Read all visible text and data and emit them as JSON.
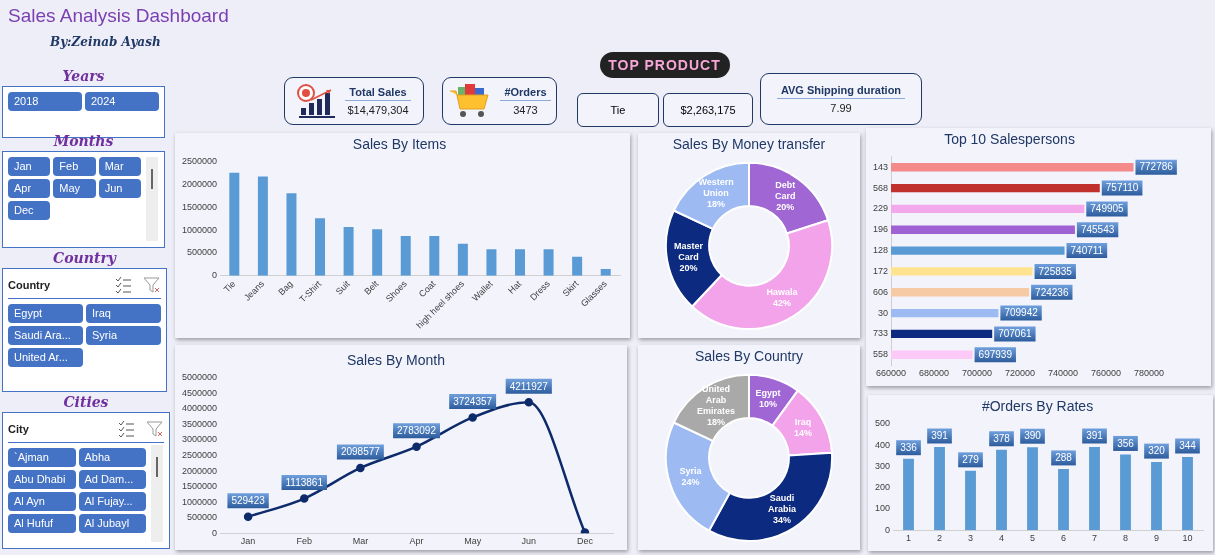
{
  "chart_data": [
    {
      "type": "other",
      "title": "Sales Analysis Dashboard",
      "subtitle": "By:Zeinab Ayash"
    },
    {
      "type": "other",
      "title": "Years",
      "annotations": [
        "2018",
        "2024"
      ]
    },
    {
      "type": "other",
      "title": "Months",
      "annotations": [
        "Jan",
        "Feb",
        "Mar",
        "Apr",
        "May",
        "Jun",
        "Dec"
      ]
    },
    {
      "type": "other",
      "title": "Country",
      "subtitle": "Country",
      "annotations": [
        "Egypt",
        "Iraq",
        "Saudi Ara...",
        "Syria",
        "United Ar..."
      ]
    },
    {
      "type": "other",
      "title": "Cities",
      "subtitle": "City",
      "annotations": [
        "`Ajman",
        "Abha",
        "Abu Dhabi",
        "Ad Dam...",
        "Al Ayn",
        "Al Fujay...",
        "Al Hufuf",
        "Al Jubayl"
      ]
    },
    {
      "type": "other",
      "title": "Total Sales",
      "annotations": [
        "$14,479,304"
      ]
    },
    {
      "type": "other",
      "title": "#Orders",
      "annotations": [
        "3473"
      ]
    },
    {
      "type": "other",
      "title": "TOP PRODUCT",
      "annotations": [
        "Tie",
        "$2,263,175"
      ]
    },
    {
      "type": "other",
      "title": "AVG Shipping duration",
      "annotations": [
        "7.99"
      ]
    },
    {
      "type": "bar",
      "title": "Sales By Items",
      "categories": [
        "Tie",
        "Jeans",
        "Bag",
        "T-Shirt",
        "Suit",
        "Belt",
        "Shoes",
        "Coat",
        "high heel shoes",
        "Wallet",
        "Hat",
        "Dress",
        "Skirt",
        "Glasses"
      ],
      "values": [
        2260000,
        2180000,
        1810000,
        1260000,
        1070000,
        1020000,
        870000,
        870000,
        700000,
        580000,
        580000,
        580000,
        420000,
        150000
      ],
      "color": "#5b9bd5",
      "ylim": [
        0,
        2500000
      ],
      "yticks": [
        0,
        500000,
        1000000,
        1500000,
        2000000,
        2500000
      ]
    },
    {
      "type": "donut",
      "title": "Sales By Money transfer",
      "categories": [
        "Debt Card",
        "Hawala",
        "Master Card",
        "Western Union"
      ],
      "values": [
        20,
        42,
        20,
        18
      ],
      "colors": [
        "#a066d3",
        "#f2a3ea",
        "#0b2a80",
        "#9dbaf2"
      ],
      "value_labels": [
        "20%",
        "42%",
        "20%",
        "18%"
      ]
    },
    {
      "type": "bar",
      "title": "Top 10 Salespersons",
      "orientation": "horizontal",
      "categories": [
        "143",
        "568",
        "229",
        "196",
        "128",
        "172",
        "606",
        "30",
        "733",
        "558"
      ],
      "values": [
        772786,
        757110,
        749905,
        745543,
        740711,
        725835,
        724236,
        709942,
        707061,
        697939
      ],
      "colors": [
        "#f48a8a",
        "#c0302c",
        "#f4a8ec",
        "#a062d2",
        "#5b9bd5",
        "#ffe38e",
        "#f7caa6",
        "#9dbaf2",
        "#0b2a80",
        "#fdc9f6"
      ],
      "xlim": [
        660000,
        780000
      ],
      "xticks": [
        660000,
        680000,
        700000,
        720000,
        740000,
        760000,
        780000
      ],
      "data_labels": true
    },
    {
      "type": "line",
      "title": "Sales By Month",
      "categories": [
        "Jan",
        "Feb",
        "Mar",
        "Apr",
        "May",
        "Jun",
        "Dec"
      ],
      "values": [
        529423,
        1113861,
        2098577,
        2783092,
        3724357,
        4211927,
        20000
      ],
      "color": "#0d2a6b",
      "value_labels": [
        "529423",
        "1113861",
        "2098577",
        "2783092",
        "3724357",
        "4211927",
        null
      ],
      "ylim": [
        0,
        5000000
      ],
      "yticks": [
        0,
        500000,
        1000000,
        1500000,
        2000000,
        2500000,
        3000000,
        3500000,
        4000000,
        4500000,
        5000000
      ],
      "marker": "circle",
      "line_style": "solid"
    },
    {
      "type": "donut",
      "title": "Sales By Country",
      "categories": [
        "Egypt",
        "Iraq",
        "Saudi Arabia",
        "Syria",
        "United Arab Emirates"
      ],
      "values": [
        10,
        14,
        34,
        24,
        18
      ],
      "colors": [
        "#a066d3",
        "#f2a3ea",
        "#0b2a80",
        "#9dbaf2",
        "#a9a9a9"
      ],
      "value_labels": [
        "10%",
        "14%",
        "34%",
        "24%",
        "18%"
      ]
    },
    {
      "type": "bar",
      "title": "#Orders By Rates",
      "categories": [
        "1",
        "2",
        "3",
        "4",
        "5",
        "6",
        "7",
        "8",
        "9",
        "10"
      ],
      "values": [
        336,
        391,
        279,
        378,
        390,
        288,
        391,
        356,
        320,
        344
      ],
      "color": "#5b9bd5",
      "ylim": [
        0,
        500
      ],
      "yticks": [
        0,
        100,
        200,
        300,
        400,
        500
      ],
      "data_labels": true
    }
  ]
}
